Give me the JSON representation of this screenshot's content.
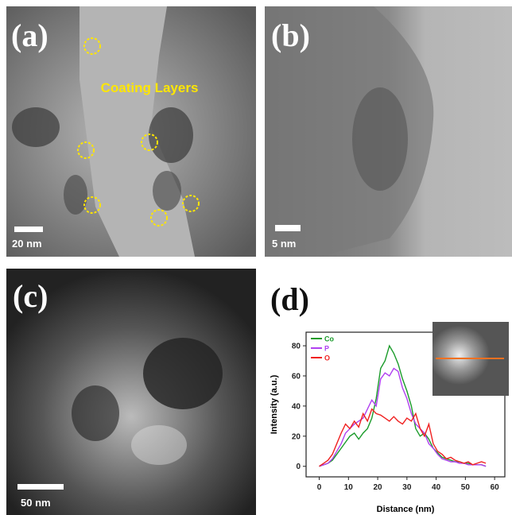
{
  "panels": {
    "a": {
      "label": "(a)",
      "annotation": "Coating Layers",
      "scale_bar": "20 nm"
    },
    "b": {
      "label": "(b)",
      "scale_bar": "5 nm"
    },
    "c": {
      "label": "(c)",
      "scale_bar": "50 nm"
    },
    "d": {
      "label": "(d)"
    }
  },
  "chart_data": {
    "type": "line",
    "x_label": "Distance (nm)",
    "y_label": "Intensity (a.u.)",
    "x": [
      0,
      1.5,
      3,
      4.5,
      6,
      7.5,
      9,
      10.5,
      12,
      13.5,
      15,
      16.5,
      18,
      19.5,
      21,
      22.5,
      24,
      25.5,
      27,
      28.5,
      30,
      31.5,
      33,
      34.5,
      36,
      37.5,
      39,
      40.5,
      42,
      43.5,
      45,
      46.5,
      48,
      49.5,
      51,
      52.5,
      54,
      55.5,
      57
    ],
    "series": [
      {
        "name": "Co",
        "color": "#1a9b2a",
        "values": [
          0,
          1,
          2,
          4,
          8,
          12,
          16,
          20,
          22,
          18,
          22,
          25,
          32,
          45,
          65,
          70,
          80,
          75,
          68,
          58,
          50,
          40,
          25,
          20,
          22,
          18,
          12,
          9,
          6,
          5,
          4,
          3,
          3,
          2,
          2,
          1,
          1,
          1,
          0
        ]
      },
      {
        "name": "P",
        "color": "#b040f0",
        "values": [
          0,
          1,
          2,
          5,
          10,
          15,
          22,
          25,
          28,
          30,
          32,
          38,
          44,
          40,
          58,
          62,
          60,
          65,
          63,
          52,
          45,
          35,
          28,
          25,
          22,
          15,
          12,
          8,
          5,
          4,
          3,
          3,
          2,
          2,
          1,
          1,
          1,
          1,
          0
        ]
      },
      {
        "name": "O",
        "color": "#f02020",
        "values": [
          0,
          2,
          4,
          8,
          15,
          22,
          28,
          25,
          30,
          26,
          35,
          30,
          38,
          35,
          34,
          32,
          30,
          33,
          30,
          28,
          32,
          30,
          35,
          25,
          20,
          28,
          15,
          10,
          8,
          5,
          6,
          4,
          3,
          2,
          3,
          1,
          2,
          3,
          2
        ]
      }
    ],
    "xlim": [
      -4.5,
      63.5
    ],
    "xticks": [
      0,
      10,
      20,
      30,
      40,
      50,
      60
    ],
    "ylim": [
      -7,
      89
    ],
    "yticks": [
      0,
      20,
      40,
      60,
      80
    ]
  }
}
